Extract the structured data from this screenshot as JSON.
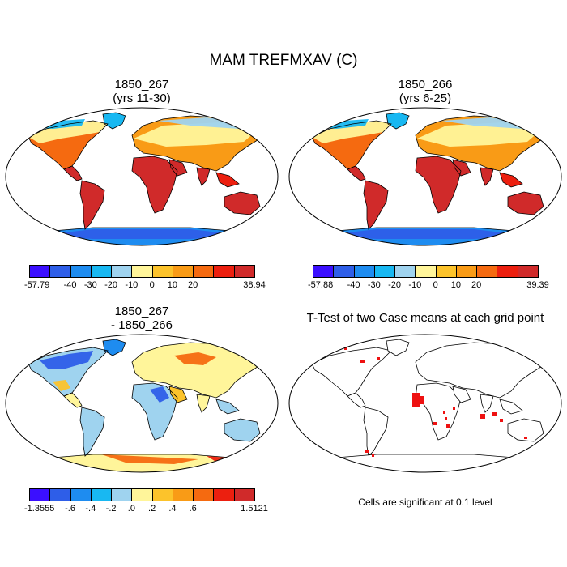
{
  "title": "MAM TREFMXAV (C)",
  "panels": [
    {
      "id": "top-left",
      "title_line1": "1850_267",
      "title_line2": "(yrs 11-30)",
      "colorbar": {
        "colors": [
          "#3b0fff",
          "#2e5ee8",
          "#1e8cf0",
          "#18b8f2",
          "#9fd3ef",
          "#fff59a",
          "#fcc32b",
          "#f99b16",
          "#f56a10",
          "#ec1f0f",
          "#d02a2a"
        ],
        "labels": [
          "-57.79",
          "-40",
          "-30",
          "-20",
          "-10",
          "0",
          "10",
          "20",
          "38.94"
        ]
      }
    },
    {
      "id": "top-right",
      "title_line1": "1850_266",
      "title_line2": "(yrs 6-25)",
      "colorbar": {
        "colors": [
          "#3b0fff",
          "#2e5ee8",
          "#1e8cf0",
          "#18b8f2",
          "#9fd3ef",
          "#fff59a",
          "#fcc32b",
          "#f99b16",
          "#f56a10",
          "#ec1f0f",
          "#d02a2a"
        ],
        "labels": [
          "-57.88",
          "-40",
          "-30",
          "-20",
          "-10",
          "0",
          "10",
          "20",
          "39.39"
        ]
      }
    },
    {
      "id": "bottom-left",
      "title_line1": "1850_267",
      "title_line2": "- 1850_266",
      "colorbar": {
        "colors": [
          "#3b0fff",
          "#2e5ee8",
          "#1e8cf0",
          "#18b8f2",
          "#9fd3ef",
          "#fff59a",
          "#fcc32b",
          "#f99b16",
          "#f56a10",
          "#ec1f0f",
          "#d02a2a"
        ],
        "labels": [
          "-1.3555",
          "-.6",
          "-.4",
          "-.2",
          ".0",
          ".2",
          ".4",
          ".6",
          "1.5121"
        ]
      }
    },
    {
      "id": "bottom-right",
      "title_line1": "T-Test of two Case means at each grid point",
      "note": "Cells are significant at 0.1 level",
      "significant_color": "#ee1111"
    }
  ]
}
